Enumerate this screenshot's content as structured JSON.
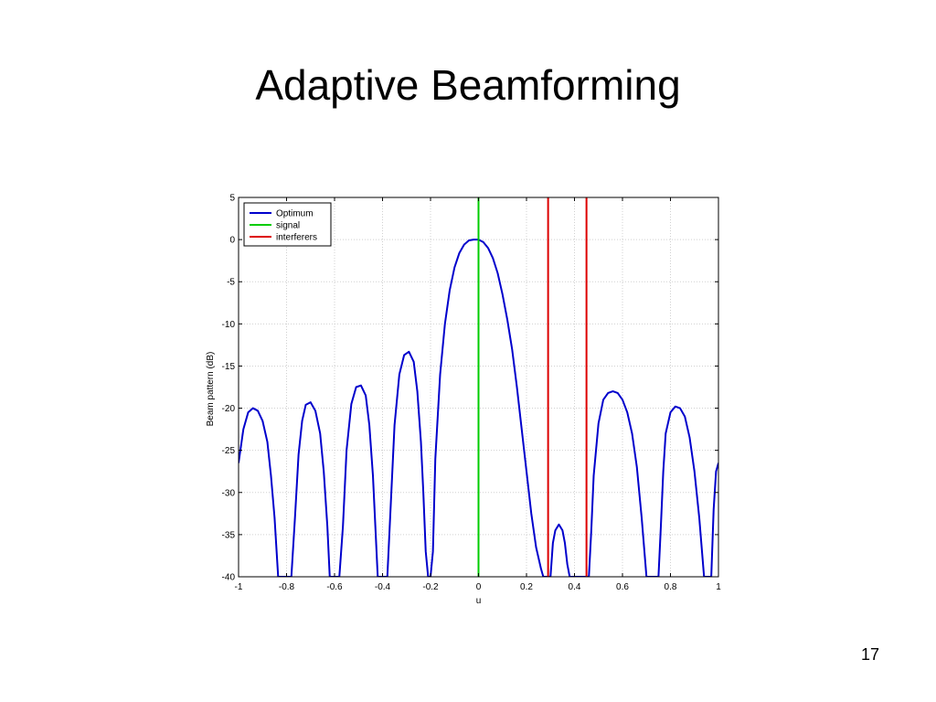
{
  "slide": {
    "title": "Adaptive Beamforming",
    "page_number": "17"
  },
  "chart_data": {
    "type": "line",
    "xlabel": "u",
    "ylabel": "Beam pattern (dB)",
    "xlim": [
      -1,
      1
    ],
    "ylim": [
      -40,
      5
    ],
    "xticks": [
      -1,
      -0.8,
      -0.6,
      -0.4,
      -0.2,
      0,
      0.2,
      0.4,
      0.6,
      0.8,
      1
    ],
    "xtick_labels": [
      "-1",
      "-0.8",
      "-0.6",
      "-0.4",
      "-0.2",
      "0",
      "0.2",
      "0.4",
      "0.6",
      "0.8",
      "1"
    ],
    "yticks": [
      5,
      0,
      -5,
      -10,
      -15,
      -20,
      -25,
      -30,
      -35,
      -40
    ],
    "ytick_labels": [
      "5",
      "0",
      "-5",
      "-10",
      "-15",
      "-20",
      "-25",
      "-30",
      "-35",
      "-40"
    ],
    "grid": true,
    "legend": {
      "position": "top-left",
      "entries": [
        {
          "label": "Optimum",
          "color": "#0000cc"
        },
        {
          "label": "signal",
          "color": "#00cc00"
        },
        {
          "label": "interferers",
          "color": "#dd0000"
        }
      ]
    },
    "series": [
      {
        "name": "Optimum",
        "color": "#0000cc",
        "x": [
          -1.0,
          -0.98,
          -0.96,
          -0.94,
          -0.92,
          -0.9,
          -0.88,
          -0.865,
          -0.85,
          -0.835,
          -0.82,
          -0.81,
          -0.8,
          -0.79,
          -0.78,
          -0.765,
          -0.75,
          -0.735,
          -0.72,
          -0.7,
          -0.68,
          -0.66,
          -0.645,
          -0.63,
          -0.62,
          -0.61,
          -0.6,
          -0.59,
          -0.58,
          -0.565,
          -0.55,
          -0.53,
          -0.51,
          -0.49,
          -0.47,
          -0.455,
          -0.44,
          -0.43,
          -0.42,
          -0.41,
          -0.4,
          -0.39,
          -0.38,
          -0.365,
          -0.35,
          -0.33,
          -0.31,
          -0.29,
          -0.27,
          -0.255,
          -0.24,
          -0.23,
          -0.22,
          -0.21,
          -0.205,
          -0.2,
          -0.19,
          -0.18,
          -0.16,
          -0.14,
          -0.12,
          -0.1,
          -0.08,
          -0.06,
          -0.04,
          -0.02,
          0.0,
          0.02,
          0.04,
          0.06,
          0.08,
          0.1,
          0.12,
          0.14,
          0.16,
          0.18,
          0.2,
          0.22,
          0.24,
          0.26,
          0.27,
          0.28,
          0.285,
          0.29,
          0.3,
          0.31,
          0.32,
          0.335,
          0.35,
          0.36,
          0.37,
          0.38,
          0.39,
          0.45,
          0.46,
          0.47,
          0.48,
          0.5,
          0.52,
          0.54,
          0.56,
          0.58,
          0.6,
          0.62,
          0.64,
          0.66,
          0.68,
          0.7,
          0.72,
          0.74,
          0.75,
          0.76,
          0.77,
          0.78,
          0.8,
          0.82,
          0.84,
          0.86,
          0.88,
          0.9,
          0.92,
          0.94,
          0.95,
          0.96,
          0.97,
          0.98,
          0.99,
          1.0
        ],
        "y": [
          -26.5,
          -22.5,
          -20.5,
          -20.0,
          -20.3,
          -21.5,
          -24.0,
          -28.0,
          -33.0,
          -40.0,
          -40.0,
          -40.0,
          -40.0,
          -40.0,
          -40.0,
          -33.0,
          -25.5,
          -21.5,
          -19.6,
          -19.3,
          -20.3,
          -23.0,
          -27.5,
          -34.0,
          -40.0,
          -40.0,
          -40.0,
          -40.0,
          -40.0,
          -34.0,
          -25.0,
          -19.5,
          -17.5,
          -17.3,
          -18.5,
          -22.0,
          -28.0,
          -34.0,
          -40.0,
          -40.0,
          -40.0,
          -40.0,
          -40.0,
          -31.0,
          -22.0,
          -16.0,
          -13.7,
          -13.3,
          -14.5,
          -18.0,
          -24.0,
          -30.0,
          -37.0,
          -40.0,
          -40.0,
          -40.0,
          -37.0,
          -26.0,
          -16.0,
          -10.0,
          -6.0,
          -3.3,
          -1.6,
          -0.6,
          -0.1,
          0.0,
          0.0,
          -0.3,
          -1.0,
          -2.2,
          -4.0,
          -6.5,
          -9.5,
          -13.0,
          -17.5,
          -22.5,
          -27.5,
          -32.5,
          -36.5,
          -39.0,
          -40.0,
          -40.0,
          -40.0,
          -40.0,
          -40.0,
          -36.0,
          -34.5,
          -33.8,
          -34.5,
          -36.0,
          -38.5,
          -40.0,
          -40.0,
          -40.0,
          -40.0,
          -34.5,
          -28.0,
          -21.8,
          -19.0,
          -18.2,
          -18.0,
          -18.2,
          -19.0,
          -20.5,
          -23.0,
          -27.0,
          -33.0,
          -40.0,
          -40.0,
          -40.0,
          -40.0,
          -34.0,
          -27.5,
          -23.0,
          -20.5,
          -19.8,
          -20.0,
          -21.0,
          -23.5,
          -27.5,
          -33.0,
          -40.0,
          -40.0,
          -40.0,
          -40.0,
          -32.0,
          -27.5,
          -26.5
        ]
      },
      {
        "name": "signal",
        "color": "#00cc00",
        "x": [
          0,
          0
        ],
        "y": [
          -40,
          5
        ]
      },
      {
        "name": "interferers",
        "color": "#dd0000",
        "x": [
          0.29,
          0.29
        ],
        "y": [
          -40,
          5
        ]
      },
      {
        "name": "interferers",
        "color": "#dd0000",
        "x": [
          0.45,
          0.45
        ],
        "y": [
          -40,
          5
        ]
      }
    ]
  }
}
